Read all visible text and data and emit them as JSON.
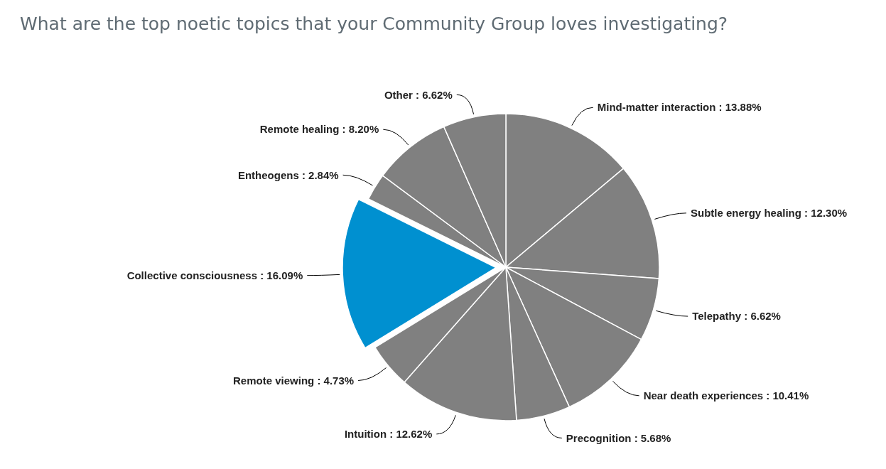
{
  "chart_data": {
    "type": "pie",
    "title": "What are the top noetic topics that your Community Group loves investigating?",
    "categories": [
      "Mind-matter interaction",
      "Subtle energy healing",
      "Telepathy",
      "Near death experiences",
      "Precognition",
      "Intuition",
      "Remote viewing",
      "Collective consciousness",
      "Entheogens",
      "Remote healing",
      "Other"
    ],
    "values": [
      13.88,
      12.3,
      6.62,
      10.41,
      5.68,
      12.62,
      4.73,
      16.09,
      2.84,
      8.2,
      6.62
    ],
    "value_labels": [
      "13.88%",
      "12.30%",
      "6.62%",
      "10.41%",
      "5.68%",
      "12.62%",
      "4.73%",
      "16.09%",
      "2.84%",
      "8.20%",
      "6.62%"
    ],
    "colors": [
      "#808080",
      "#808080",
      "#808080",
      "#808080",
      "#808080",
      "#808080",
      "#808080",
      "#0090d0",
      "#808080",
      "#808080",
      "#808080"
    ]
  }
}
